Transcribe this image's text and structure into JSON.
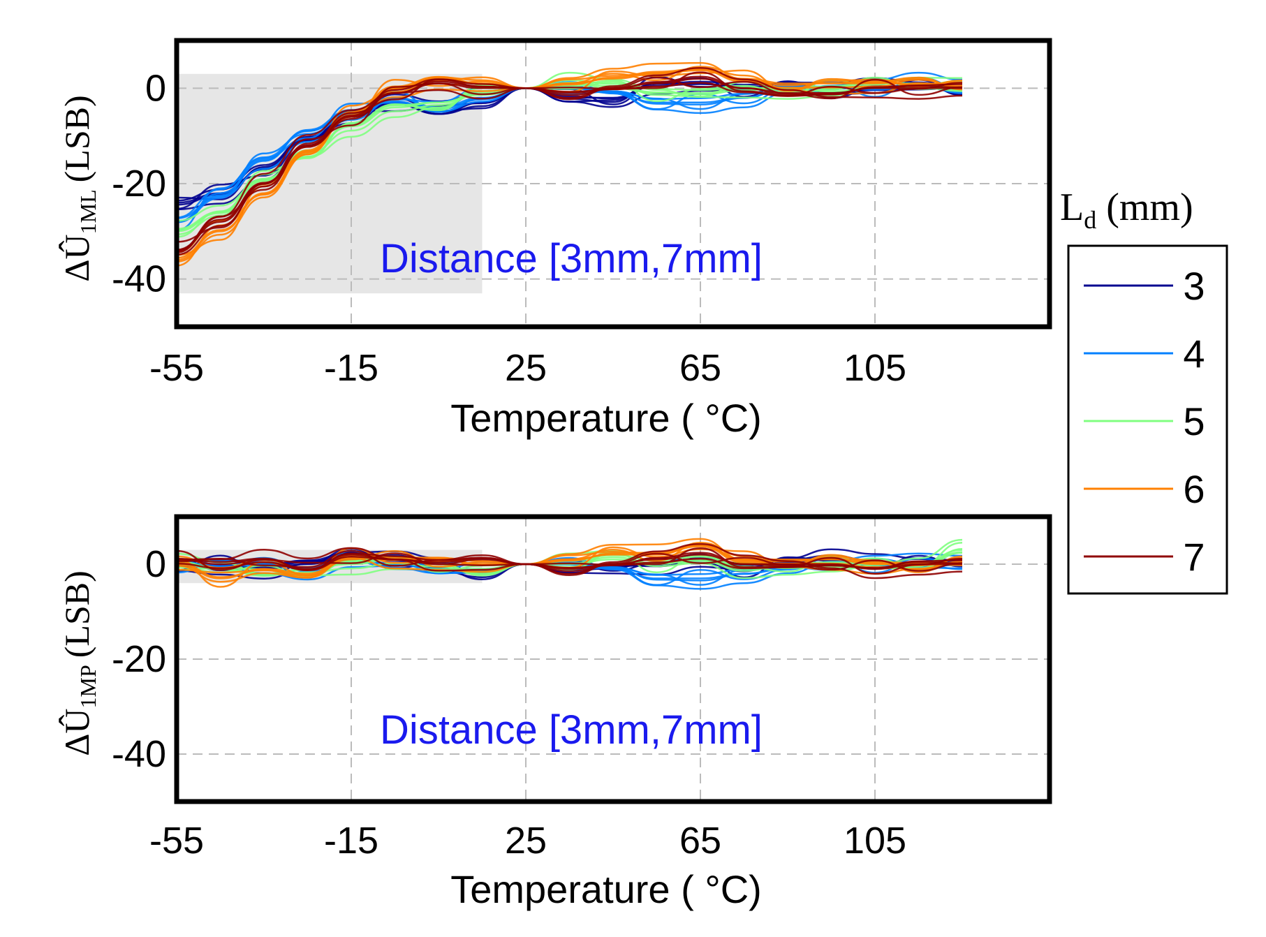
{
  "colors": {
    "annotation": "#1a1aee",
    "shade": "#e6e6e6",
    "grid": "#bbbbbb"
  },
  "legend": {
    "title": "L",
    "title_sub": "d",
    "title_suffix": " (mm)",
    "items": [
      {
        "label": "3",
        "color": "#00008f"
      },
      {
        "label": "4",
        "color": "#0080ff"
      },
      {
        "label": "5",
        "color": "#80ff80"
      },
      {
        "label": "6",
        "color": "#ff8000"
      },
      {
        "label": "7",
        "color": "#8f0000"
      }
    ]
  },
  "chart_data": [
    {
      "type": "line",
      "ylabel_prefix": "ΔÛ",
      "ylabel_sub": "1ML",
      "ylabel_suffix": "(LSB)",
      "xlabel": "Temperature ( °C)",
      "annotation": "Distance [3mm,7mm]",
      "xlim": [
        -55,
        145
      ],
      "ylim": [
        -50,
        10
      ],
      "xticks": [
        "-55",
        "-15",
        "25",
        "65",
        "105"
      ],
      "yticks": [
        "0",
        "-20",
        "-40"
      ],
      "shaded_region": {
        "x": [
          -55,
          15
        ],
        "y": [
          -43,
          3
        ]
      },
      "x": [
        -55,
        -45,
        -35,
        -25,
        -15,
        -5,
        5,
        15,
        25,
        35,
        45,
        55,
        65,
        75,
        85,
        95,
        105,
        115,
        125
      ],
      "series": [
        {
          "name": "3",
          "values": [
            -24,
            -22,
            -17,
            -11,
            -6,
            -3,
            -5,
            -3,
            0,
            -2,
            -2,
            1,
            1,
            0,
            0,
            -1,
            0,
            0,
            0
          ]
        },
        {
          "name": "4",
          "values": [
            -28,
            -22,
            -15,
            -9,
            -5,
            -2,
            -4,
            -2,
            0,
            0,
            -1,
            -3,
            -3,
            -2,
            0,
            0,
            0,
            1,
            0
          ]
        },
        {
          "name": "5",
          "values": [
            -30,
            -26,
            -19,
            -13,
            -8,
            -4,
            -3,
            -1,
            0,
            1,
            0,
            -1,
            -1,
            0,
            0,
            0,
            1,
            1,
            0
          ]
        },
        {
          "name": "6",
          "values": [
            -36,
            -30,
            -22,
            -13,
            -5,
            0,
            2,
            1,
            0,
            1,
            2,
            3,
            4,
            2,
            1,
            1,
            1,
            2,
            0
          ]
        },
        {
          "name": "7",
          "values": [
            -34,
            -28,
            -20,
            -12,
            -6,
            -1,
            1,
            0,
            0,
            -1,
            0,
            1,
            2,
            0,
            -1,
            -1,
            0,
            0,
            0
          ]
        }
      ]
    },
    {
      "type": "line",
      "ylabel_prefix": "ΔÛ",
      "ylabel_sub": "1MP",
      "ylabel_suffix": "(LSB)",
      "xlabel": "Temperature ( °C)",
      "annotation": "Distance [3mm,7mm]",
      "xlim": [
        -55,
        145
      ],
      "ylim": [
        -50,
        10
      ],
      "xticks": [
        "-55",
        "-15",
        "25",
        "65",
        "105"
      ],
      "yticks": [
        "0",
        "-20",
        "-40"
      ],
      "shaded_region": {
        "x": [
          -55,
          15
        ],
        "y": [
          -4,
          3
        ]
      },
      "x": [
        -55,
        -45,
        -35,
        -25,
        -15,
        -5,
        5,
        15,
        25,
        35,
        45,
        55,
        65,
        75,
        85,
        95,
        105,
        115,
        125
      ],
      "series": [
        {
          "name": "3",
          "values": [
            0,
            0,
            -1,
            0,
            2,
            1,
            -1,
            -2,
            0,
            -1,
            0,
            0,
            1,
            -1,
            0,
            1,
            0,
            0,
            1
          ]
        },
        {
          "name": "4",
          "values": [
            0,
            0,
            0,
            -1,
            1,
            0,
            -1,
            -1,
            0,
            0,
            -1,
            -3,
            -3,
            -2,
            -1,
            0,
            0,
            0,
            0
          ]
        },
        {
          "name": "5",
          "values": [
            0,
            -1,
            -2,
            -1,
            0,
            1,
            0,
            -2,
            0,
            0,
            1,
            0,
            1,
            -1,
            0,
            0,
            0,
            0,
            3
          ]
        },
        {
          "name": "6",
          "values": [
            0,
            -3,
            -1,
            -2,
            2,
            1,
            1,
            0,
            0,
            1,
            2,
            2,
            4,
            1,
            1,
            1,
            0,
            0,
            0
          ]
        },
        {
          "name": "7",
          "values": [
            1,
            0,
            1,
            -1,
            2,
            1,
            0,
            1,
            0,
            -1,
            0,
            1,
            2,
            0,
            0,
            0,
            -1,
            0,
            0
          ]
        }
      ]
    }
  ]
}
